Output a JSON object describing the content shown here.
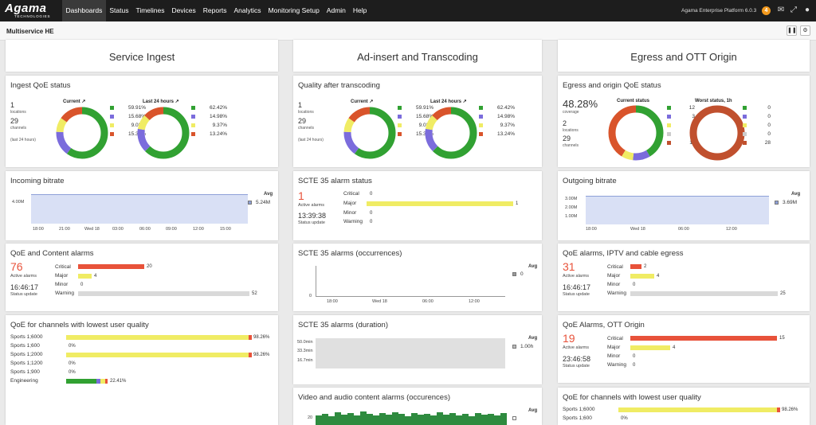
{
  "nav": {
    "logo_main": "Agama",
    "logo_sub": "TECHNOLOGIES",
    "menu": [
      "Dashboards",
      "Status",
      "Timelines",
      "Devices",
      "Reports",
      "Analytics",
      "Monitoring Setup",
      "Admin",
      "Help"
    ],
    "platform": "Agama Enterprise Platform 6.0.3",
    "notifications": "4"
  },
  "page": {
    "title": "Multiservice HE"
  },
  "columns": [
    "Service Ingest",
    "Ad-insert and Transcoding",
    "Egress and OTT Origin"
  ],
  "colors": {
    "green": "#31a132",
    "blue": "#7b6cdc",
    "yellow": "#f0ec64",
    "red": "#d9542b",
    "gray": "#cccccc",
    "brown": "#c0502e"
  },
  "ingest_qoe": {
    "title": "Ingest QoE status",
    "locations": "1",
    "locations_label": "locations",
    "channels": "29",
    "channels_label": "channels",
    "period": "(last 24 hours)",
    "current": {
      "label": "Current",
      "values": [
        "59.91%",
        "15.68%",
        "9.03%",
        "15.38%"
      ]
    },
    "last24": {
      "label": "Last 24 hours",
      "values": [
        "62.42%",
        "14.98%",
        "9.37%",
        "13.24%"
      ]
    }
  },
  "quality_trans": {
    "title": "Quality after transcoding",
    "locations": "1",
    "locations_label": "locations",
    "channels": "29",
    "channels_label": "channels",
    "period": "(last 24 hours)",
    "current": {
      "label": "Current",
      "values": [
        "59.91%",
        "15.68%",
        "9.03%",
        "15.38%"
      ]
    },
    "last24": {
      "label": "Last 24 hours",
      "values": [
        "62.42%",
        "14.98%",
        "9.37%",
        "13.24%"
      ]
    }
  },
  "egress_qoe": {
    "title": "Egress and origin QoE status",
    "coverage": "48.28%",
    "coverage_label": "coverage",
    "locations": "2",
    "locations_label": "locations",
    "channels": "29",
    "channels_label": "channels",
    "current": {
      "label": "Current status",
      "values": [
        "12",
        "3",
        "2",
        "0",
        "11"
      ]
    },
    "worst": {
      "label": "Worst status, 1h",
      "values": [
        "0",
        "0",
        "0",
        "0",
        "28"
      ]
    }
  },
  "incoming_bitrate": {
    "title": "Incoming bitrate",
    "ytick": "4.00M",
    "xticks": [
      "18:00",
      "21:00",
      "Wed 18",
      "03:00",
      "06:00",
      "09:00",
      "12:00",
      "15:00"
    ],
    "avg_label": "Avg",
    "avg_value": "5.24M"
  },
  "outgoing_bitrate": {
    "title": "Outgoing bitrate",
    "yticks": [
      "3.00M",
      "2.00M",
      "1.00M"
    ],
    "xticks": [
      "18:00",
      "Wed 18",
      "06:00",
      "12:00"
    ],
    "avg_label": "Avg",
    "avg_value": "3.69M"
  },
  "scte_status": {
    "title": "SCTE 35 alarm status",
    "active": "1",
    "active_label": "Active alarms",
    "time": "13:39:38",
    "time_label": "Status update",
    "rows": [
      {
        "label": "Critical",
        "value": "0"
      },
      {
        "label": "Major",
        "value": "1"
      },
      {
        "label": "Minor",
        "value": "0"
      },
      {
        "label": "Warning",
        "value": "0"
      }
    ]
  },
  "qoe_content": {
    "title": "QoE and Content alarms",
    "active": "76",
    "active_label": "Active alarms",
    "time": "16:46:17",
    "time_label": "Status update",
    "rows": [
      {
        "label": "Critical",
        "value": "20"
      },
      {
        "label": "Major",
        "value": "4"
      },
      {
        "label": "Minor",
        "value": "0"
      },
      {
        "label": "Warning",
        "value": "52"
      }
    ]
  },
  "qoe_iptv": {
    "title": "QoE alarms, IPTV and cable egress",
    "active": "31",
    "active_label": "Active alarms",
    "time": "16:46:17",
    "time_label": "Status update",
    "rows": [
      {
        "label": "Critical",
        "value": "2"
      },
      {
        "label": "Major",
        "value": "4"
      },
      {
        "label": "Minor",
        "value": "0"
      },
      {
        "label": "Warning",
        "value": "25"
      }
    ]
  },
  "qoe_ott": {
    "title": "QoE Alarms, OTT Origin",
    "active": "19",
    "active_label": "Active alarms",
    "time": "23:46:58",
    "time_label": "Status update",
    "rows": [
      {
        "label": "Critical",
        "value": "15"
      },
      {
        "label": "Major",
        "value": "4"
      },
      {
        "label": "Minor",
        "value": "0"
      },
      {
        "label": "Warning",
        "value": "0"
      }
    ]
  },
  "scte_occ": {
    "title": "SCTE 35 alarms (occurrences)",
    "ytick": "0",
    "xticks": [
      "18:00",
      "Wed 18",
      "06:00",
      "12:00"
    ],
    "avg_label": "Avg",
    "avg_value": "0"
  },
  "scte_dur": {
    "title": "SCTE 35 alarms (duration)",
    "yticks": [
      "33.3min",
      "16.7min"
    ],
    "ytick_top": "50.0min",
    "avg_label": "Avg",
    "avg_value": "1.00h"
  },
  "video_audio": {
    "title": "Video and audio content alarms (occurences)",
    "ytick": "20",
    "avg_label": "Avg"
  },
  "lowest_ingest": {
    "title": "QoE for channels with lowest user quality",
    "rows": [
      {
        "label": "Sports 1;6000",
        "value": "98.26%"
      },
      {
        "label": "Sports 1;600",
        "value": "0%"
      },
      {
        "label": "Sports 1;2000",
        "value": "98.26%"
      },
      {
        "label": "Sports 1;1200",
        "value": "0%"
      },
      {
        "label": "Sports 1;900",
        "value": "0%"
      },
      {
        "label": "Engineering",
        "value": "22.41%"
      }
    ]
  },
  "lowest_egress": {
    "title": "QoE for channels with lowest user quality",
    "rows": [
      {
        "label": "Sports 1;6000",
        "value": "98.26%"
      },
      {
        "label": "Sports 1;600",
        "value": "0%"
      }
    ]
  }
}
